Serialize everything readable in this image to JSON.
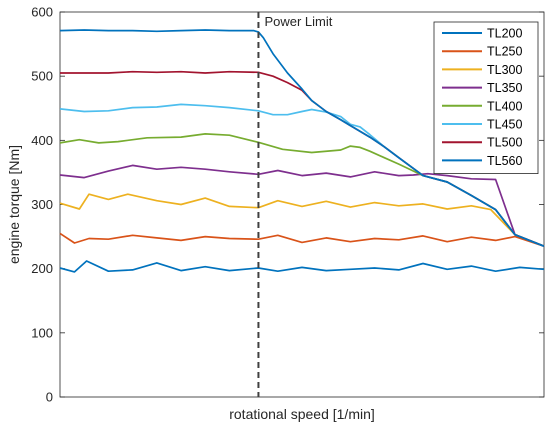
{
  "chart_data": {
    "type": "line",
    "title": "",
    "xlabel": "rotational speed [1/min]",
    "ylabel": "engine torque [Nm]",
    "ylim": [
      0,
      600
    ],
    "yticks": [
      0,
      100,
      200,
      300,
      400,
      500,
      600
    ],
    "xlim": [
      0,
      1
    ],
    "x_tick_labels": "none",
    "grid": false,
    "legend_position": "top-right",
    "annotation": {
      "text": "Power Limit",
      "x": 0.41,
      "style": "dashed vertical line"
    },
    "series": [
      {
        "name": "TL200",
        "color": "#0072BD",
        "x": [
          0.0,
          0.03,
          0.055,
          0.1,
          0.15,
          0.2,
          0.25,
          0.3,
          0.35,
          0.41,
          0.45,
          0.5,
          0.55,
          0.6,
          0.65,
          0.7,
          0.75,
          0.8,
          0.85,
          0.9,
          0.95,
          1.0
        ],
        "y": [
          201,
          195,
          212,
          196,
          198,
          209,
          197,
          203,
          197,
          201,
          196,
          202,
          197,
          199,
          201,
          198,
          208,
          199,
          204,
          196,
          202,
          199
        ]
      },
      {
        "name": "TL250",
        "color": "#D95319",
        "x": [
          0.0,
          0.03,
          0.06,
          0.1,
          0.15,
          0.2,
          0.25,
          0.3,
          0.35,
          0.41,
          0.45,
          0.5,
          0.55,
          0.6,
          0.65,
          0.7,
          0.75,
          0.8,
          0.85,
          0.9,
          0.94,
          1.0
        ],
        "y": [
          255,
          240,
          247,
          246,
          252,
          248,
          244,
          250,
          247,
          246,
          252,
          241,
          248,
          242,
          247,
          245,
          251,
          242,
          249,
          244,
          250,
          235
        ]
      },
      {
        "name": "TL300",
        "color": "#EDB120",
        "x": [
          0.0,
          0.04,
          0.06,
          0.1,
          0.14,
          0.2,
          0.25,
          0.3,
          0.35,
          0.41,
          0.45,
          0.5,
          0.55,
          0.6,
          0.65,
          0.7,
          0.75,
          0.8,
          0.85,
          0.89,
          0.94,
          1.0
        ],
        "y": [
          302,
          293,
          316,
          308,
          316,
          306,
          300,
          310,
          297,
          295,
          306,
          297,
          305,
          296,
          303,
          298,
          301,
          293,
          298,
          292,
          253,
          235
        ]
      },
      {
        "name": "TL350",
        "color": "#7E2F8E",
        "x": [
          0.0,
          0.05,
          0.1,
          0.15,
          0.2,
          0.25,
          0.3,
          0.35,
          0.41,
          0.45,
          0.5,
          0.55,
          0.6,
          0.65,
          0.7,
          0.73,
          0.76,
          0.8,
          0.85,
          0.9,
          0.94,
          1.0
        ],
        "y": [
          346,
          342,
          352,
          361,
          355,
          358,
          355,
          351,
          347,
          353,
          345,
          349,
          343,
          351,
          345,
          346,
          348,
          345,
          340,
          339,
          253,
          235
        ]
      },
      {
        "name": "TL400",
        "color": "#77AC30",
        "x": [
          0.0,
          0.04,
          0.08,
          0.12,
          0.18,
          0.25,
          0.3,
          0.35,
          0.41,
          0.46,
          0.52,
          0.58,
          0.6,
          0.62,
          0.64,
          0.67,
          0.7,
          0.75,
          0.8,
          0.85,
          0.9,
          0.94,
          1.0
        ],
        "y": [
          396,
          401,
          396,
          398,
          404,
          405,
          410,
          408,
          397,
          386,
          381,
          385,
          391,
          389,
          383,
          373,
          363,
          345,
          335,
          314,
          292,
          253,
          235
        ]
      },
      {
        "name": "TL450",
        "color": "#4DBEEE",
        "x": [
          0.0,
          0.05,
          0.1,
          0.15,
          0.2,
          0.25,
          0.3,
          0.35,
          0.41,
          0.44,
          0.47,
          0.5,
          0.52,
          0.55,
          0.58,
          0.6,
          0.62,
          0.64,
          0.67,
          0.7,
          0.75,
          0.8,
          0.85,
          0.9,
          0.94,
          1.0
        ],
        "y": [
          449,
          445,
          446,
          451,
          452,
          456,
          454,
          451,
          446,
          440,
          440,
          445,
          448,
          444,
          437,
          425,
          421,
          409,
          390,
          373,
          345,
          335,
          314,
          292,
          253,
          235
        ]
      },
      {
        "name": "TL500",
        "color": "#A2142F",
        "x": [
          0.0,
          0.05,
          0.1,
          0.15,
          0.2,
          0.25,
          0.3,
          0.35,
          0.41,
          0.44,
          0.47,
          0.5,
          0.52,
          0.55,
          0.58,
          0.6,
          0.64,
          0.67,
          0.7,
          0.75,
          0.8,
          0.85,
          0.9,
          0.94,
          1.0
        ],
        "y": [
          505,
          505,
          505,
          507,
          506,
          507,
          505,
          507,
          506,
          500,
          490,
          478,
          462,
          445,
          432,
          423,
          405,
          390,
          373,
          345,
          335,
          314,
          292,
          253,
          235
        ]
      },
      {
        "name": "TL560",
        "color": "#0072BD",
        "x": [
          0.0,
          0.05,
          0.1,
          0.15,
          0.2,
          0.25,
          0.3,
          0.35,
          0.4,
          0.41,
          0.42,
          0.44,
          0.47,
          0.5,
          0.52,
          0.55,
          0.58,
          0.6,
          0.64,
          0.67,
          0.7,
          0.75,
          0.8,
          0.85,
          0.9,
          0.94,
          1.0
        ],
        "y": [
          571,
          572,
          571,
          571,
          570,
          571,
          572,
          571,
          571,
          569,
          560,
          535,
          505,
          480,
          462,
          445,
          432,
          423,
          405,
          390,
          373,
          345,
          335,
          314,
          292,
          253,
          235
        ]
      }
    ]
  }
}
